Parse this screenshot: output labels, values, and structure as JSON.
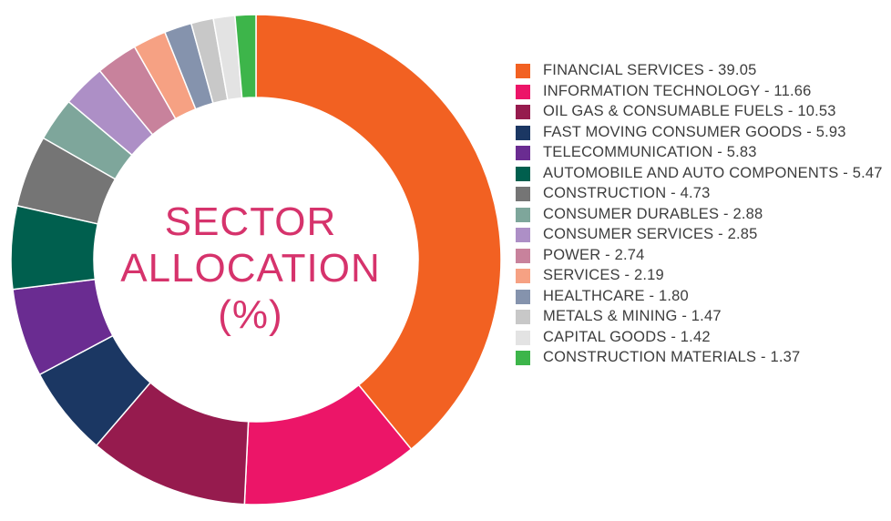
{
  "chart_data": {
    "type": "pie",
    "title": "SECTOR ALLOCATION (%)",
    "title_lines": [
      "SECTOR",
      "ALLOCATION",
      "(%)"
    ],
    "title_color": "#d6336c",
    "legend_position": "right",
    "slices": [
      {
        "label": "FINANCIAL SERVICES - 39.05",
        "value": 39.05,
        "color": "#f26122"
      },
      {
        "label": "INFORMATION TECHNOLOGY - 11.66",
        "value": 11.66,
        "color": "#ec1568"
      },
      {
        "label": "OIL GAS & CONSUMABLE FUELS - 10.53",
        "value": 10.53,
        "color": "#961b4e"
      },
      {
        "label": "FAST MOVING CONSUMER GOODS - 5.93",
        "value": 5.93,
        "color": "#1b3763"
      },
      {
        "label": "TELECOMMUNICATION - 5.83",
        "value": 5.83,
        "color": "#6a2c91"
      },
      {
        "label": "AUTOMOBILE AND AUTO COMPONENTS - 5.47",
        "value": 5.47,
        "color": "#005f4e"
      },
      {
        "label": "CONSTRUCTION - 4.73",
        "value": 4.73,
        "color": "#757575"
      },
      {
        "label": "CONSUMER DURABLES - 2.88",
        "value": 2.88,
        "color": "#7ea69b"
      },
      {
        "label": "CONSUMER SERVICES - 2.85",
        "value": 2.85,
        "color": "#ad8fc6"
      },
      {
        "label": "POWER - 2.74",
        "value": 2.74,
        "color": "#c8829c"
      },
      {
        "label": "SERVICES - 2.19",
        "value": 2.19,
        "color": "#f6a183"
      },
      {
        "label": "HEALTHCARE - 1.80",
        "value": 1.8,
        "color": "#8593ad"
      },
      {
        "label": "METALS & MINING - 1.47",
        "value": 1.47,
        "color": "#c8c8c8"
      },
      {
        "label": "CAPITAL GOODS - 1.42",
        "value": 1.42,
        "color": "#e3e3e3"
      },
      {
        "label": "CONSTRUCTION MATERIALS - 1.37",
        "value": 1.37,
        "color": "#3db54a"
      }
    ]
  }
}
